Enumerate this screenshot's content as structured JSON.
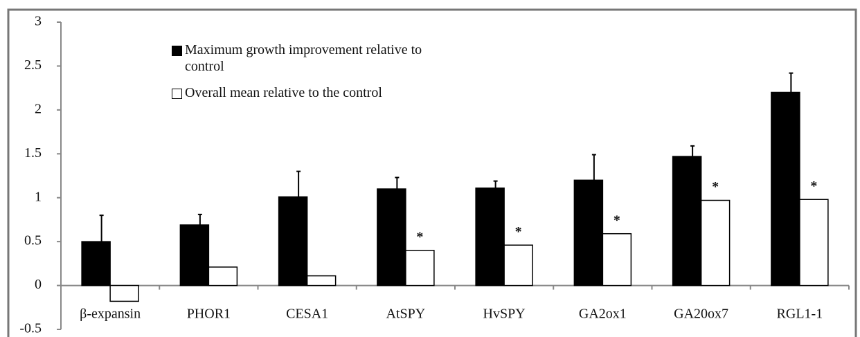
{
  "chart_data": {
    "type": "bar",
    "categories": [
      "β-expansin",
      "PHOR1",
      "CESA1",
      "AtSPY",
      "HvSPY",
      "GA2ox1",
      "GA20ox7",
      "RGL1-1"
    ],
    "series": [
      {
        "name": "Maximum growth improvement relative to  control",
        "color": "#000000",
        "values": [
          0.5,
          0.69,
          1.01,
          1.1,
          1.11,
          1.2,
          1.47,
          2.2
        ],
        "errors": [
          0.3,
          0.12,
          0.29,
          0.13,
          0.08,
          0.29,
          0.12,
          0.22
        ]
      },
      {
        "name": "Overall mean relative to the control",
        "color": "#ffffff",
        "values": [
          -0.18,
          0.21,
          0.11,
          0.4,
          0.46,
          0.59,
          0.97,
          0.98
        ],
        "annotations": [
          null,
          null,
          null,
          "*",
          "*",
          "*",
          "*",
          "*"
        ]
      }
    ],
    "ylim": [
      -0.5,
      3
    ],
    "yticks": [
      -0.5,
      0,
      0.5,
      1,
      1.5,
      2,
      2.5,
      3
    ]
  }
}
